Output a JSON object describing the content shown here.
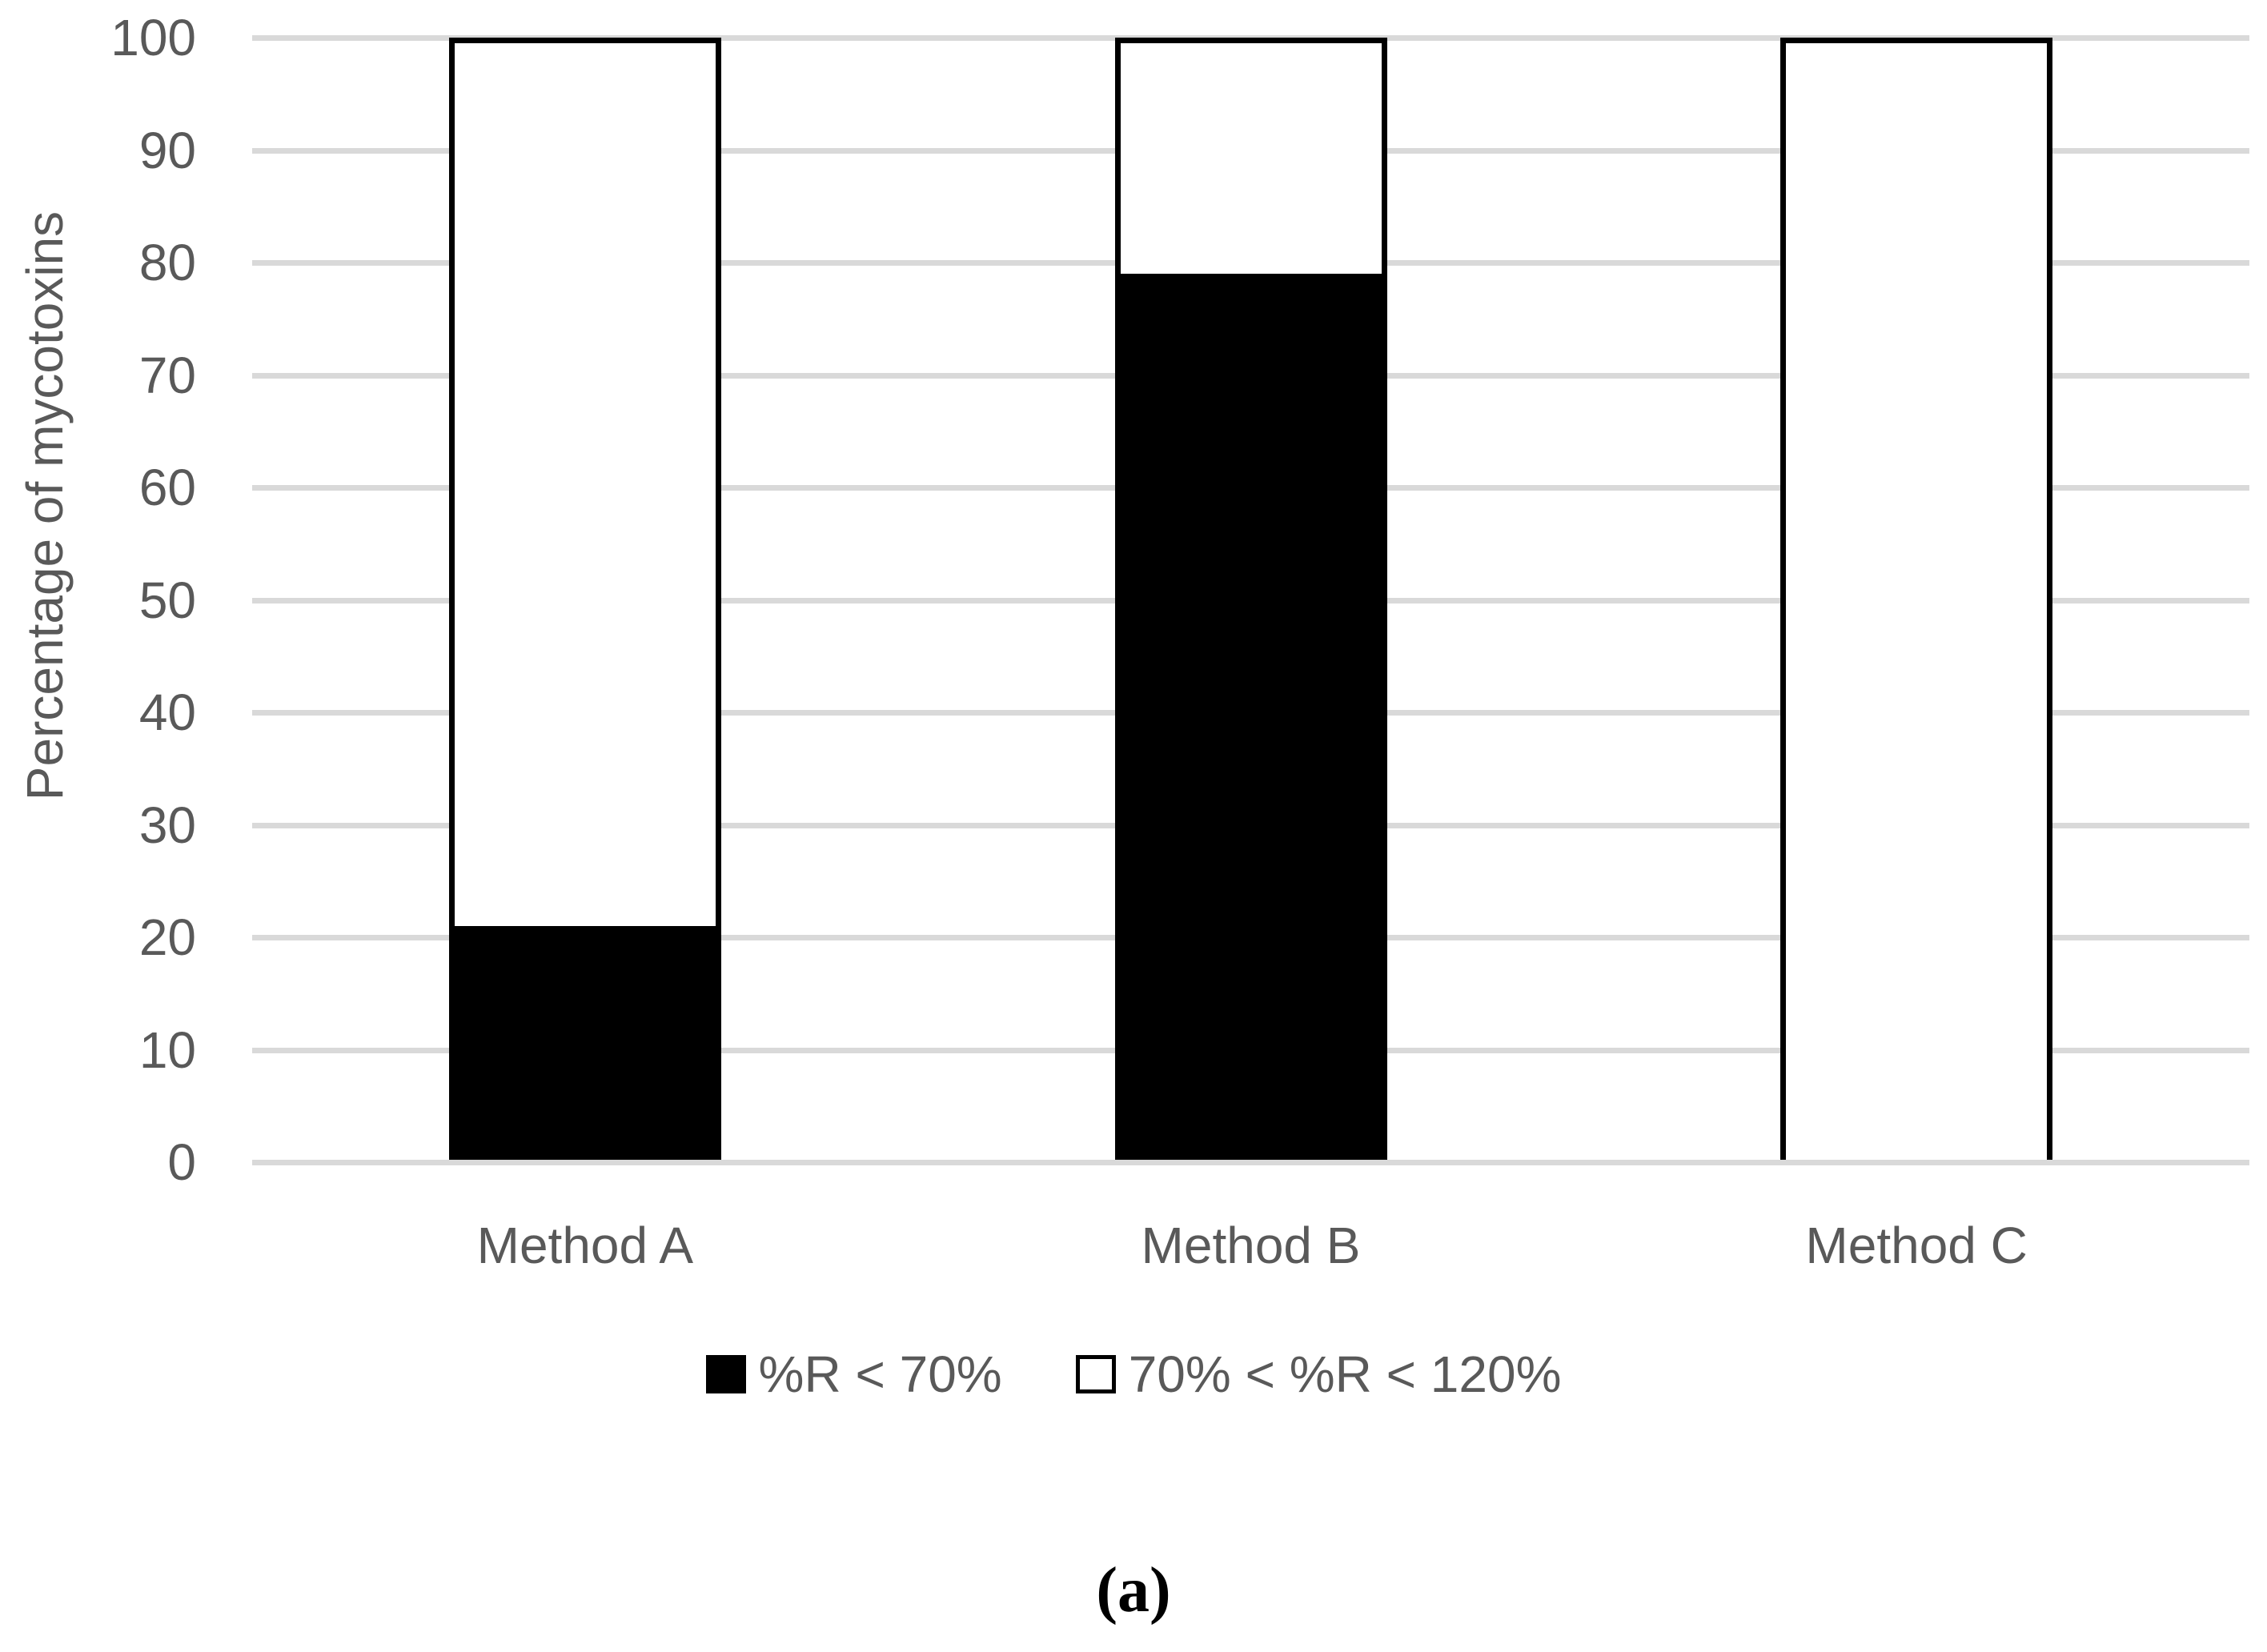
{
  "caption": "(a)",
  "chart_data": {
    "type": "bar",
    "stacked": true,
    "title": "",
    "xlabel": "",
    "ylabel": "Percentage of mycotoxins",
    "categories": [
      "Method A",
      "Method B",
      "Method C"
    ],
    "series": [
      {
        "name": "%R < 70%",
        "color": "#000000",
        "values": [
          21,
          79,
          0
        ]
      },
      {
        "name": "70% < %R < 120%",
        "color": "#ffffff",
        "values": [
          79,
          21,
          100
        ]
      }
    ],
    "ylim": [
      0,
      100
    ],
    "yticks": [
      0,
      10,
      20,
      30,
      40,
      50,
      60,
      70,
      80,
      90,
      100
    ],
    "grid": true,
    "legend_position": "bottom",
    "colors": {
      "gridline": "#d9d9d9",
      "text": "#595959",
      "bar_border": "#000000",
      "background": "#ffffff"
    }
  }
}
